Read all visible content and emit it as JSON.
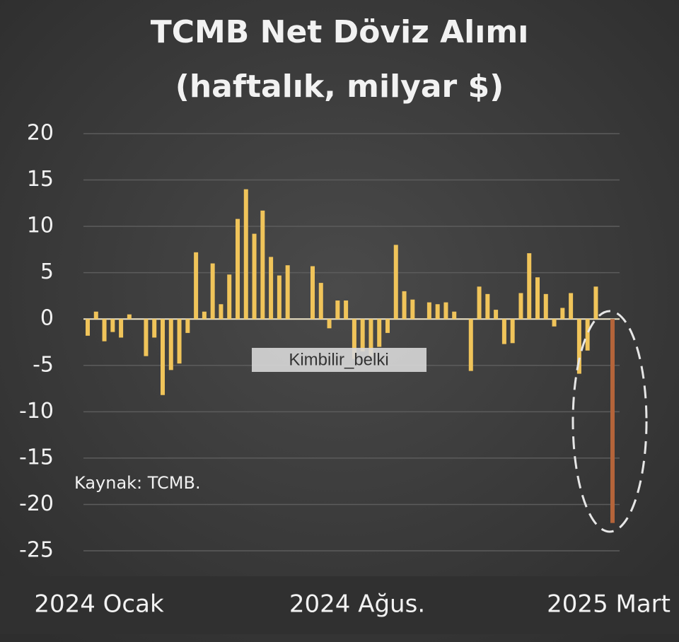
{
  "chart_data": {
    "type": "bar",
    "title": "TCMB Net Döviz Alımı",
    "subtitle": "(haftalık, milyar $)",
    "values": [
      -1.8,
      0.8,
      -2.4,
      -1.4,
      -2,
      0.5,
      0,
      -4,
      -2,
      -8.2,
      -5.5,
      -4.8,
      -1.5,
      7.2,
      0.8,
      6,
      1.6,
      4.8,
      10.8,
      14,
      9.2,
      11.7,
      6.7,
      4.7,
      5.8,
      0,
      0,
      5.7,
      3.9,
      -1,
      2,
      2,
      -4.3,
      -3.5,
      -4,
      -3,
      -1.5,
      8,
      3,
      2.1,
      0,
      1.8,
      1.6,
      1.8,
      0.8,
      0,
      -5.6,
      3.5,
      2.7,
      1,
      -2.7,
      -2.6,
      2.8,
      7.1,
      4.5,
      2.7,
      -0.8,
      1.2,
      2.8,
      -5.9,
      -3.4,
      3.5,
      0,
      -22
    ],
    "color": "#f0c45a",
    "last_bar_color": "#b4643a",
    "ylim": [
      -25,
      20
    ],
    "yticks": [
      20,
      15,
      10,
      5,
      0,
      -5,
      -10,
      -15,
      -20,
      -25
    ],
    "grid": true,
    "x_labels": [
      "2024 Ocak",
      "2024 Ağus.",
      "2025 Mart"
    ],
    "annotations": [
      "Kaynak: TCMB.",
      "Kimbilir_belki"
    ]
  }
}
